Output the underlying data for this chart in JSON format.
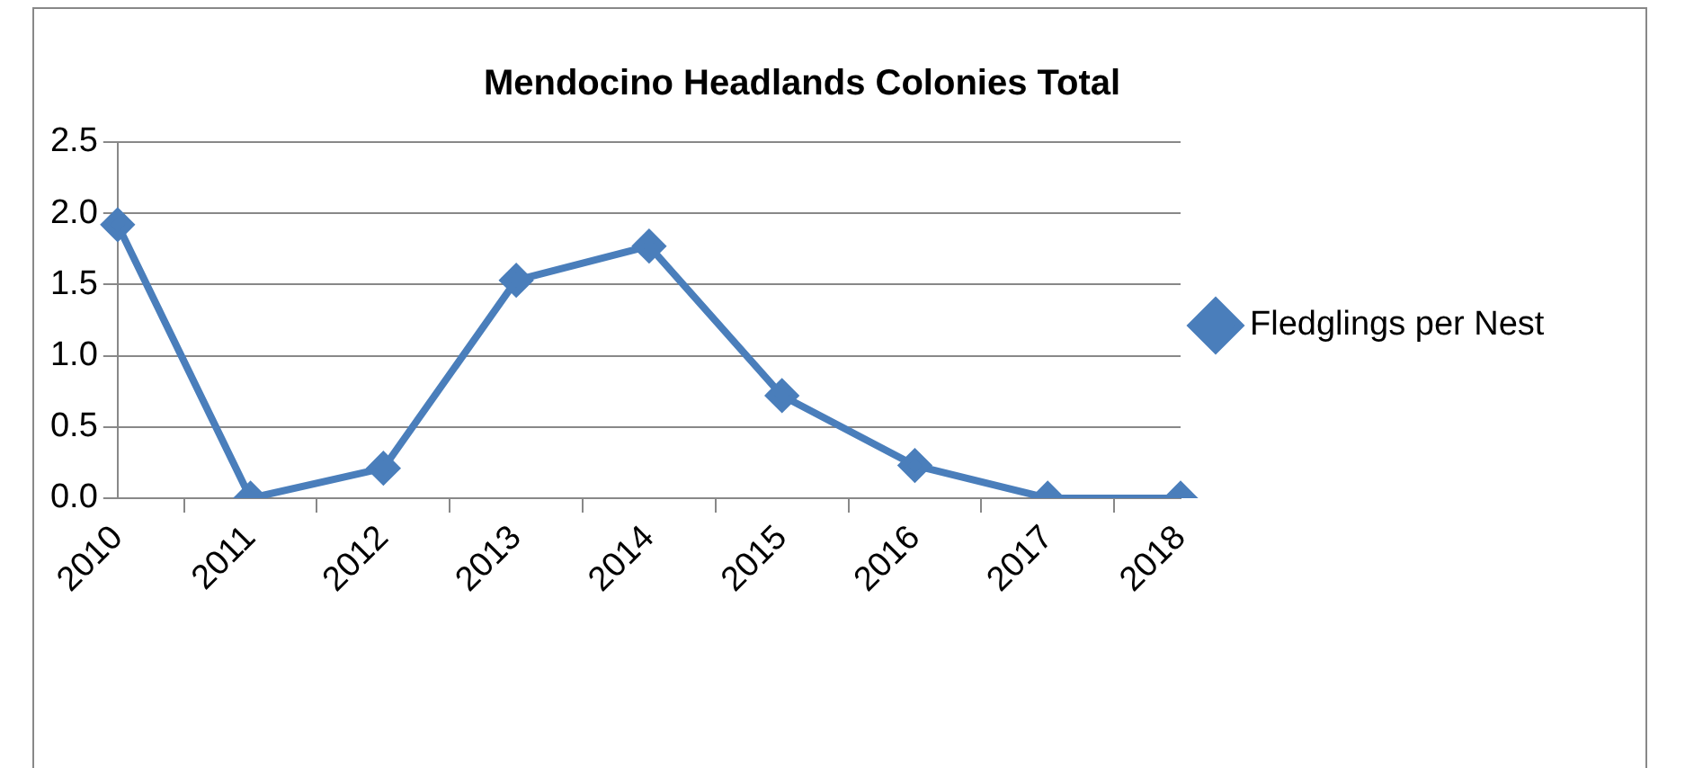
{
  "chart_data": {
    "type": "line",
    "title": "Mendocino Headlands Colonies Total",
    "categories": [
      "2010",
      "2011",
      "2012",
      "2013",
      "2014",
      "2015",
      "2016",
      "2017",
      "2018"
    ],
    "series": [
      {
        "name": "Fledglings per Nest",
        "color": "#4a7ebb",
        "values": [
          1.92,
          0,
          0.21,
          1.53,
          1.77,
          0.72,
          0.23,
          0,
          0
        ]
      }
    ],
    "ylim": [
      0,
      2.5
    ],
    "yticks": [
      {
        "value": 0,
        "label": "0.0"
      },
      {
        "value": 0.5,
        "label": "0.5"
      },
      {
        "value": 1,
        "label": "1.0"
      },
      {
        "value": 1.5,
        "label": "1.5"
      },
      {
        "value": 2,
        "label": "2.0"
      },
      {
        "value": 2.5,
        "label": "2.5"
      }
    ],
    "grid": "y",
    "legend": "right",
    "marker": "diamond",
    "line_style": "solid"
  }
}
